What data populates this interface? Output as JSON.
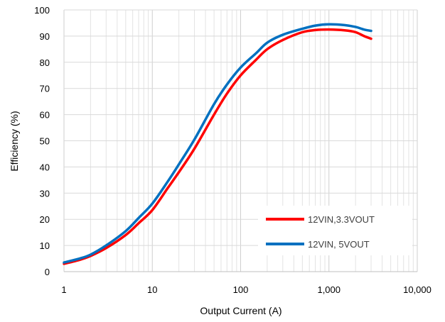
{
  "chart_data": {
    "type": "line",
    "title": "",
    "xlabel": "Output Current (A)",
    "ylabel": "Efficiency  (%)",
    "x_scale": "log",
    "xlim": [
      1,
      10000
    ],
    "ylim": [
      0,
      100
    ],
    "x_ticks": [
      1,
      10,
      100,
      1000,
      10000
    ],
    "x_tick_labels": [
      "1",
      "10",
      "100",
      "1,000",
      "10,000"
    ],
    "y_ticks": [
      0,
      10,
      20,
      30,
      40,
      50,
      60,
      70,
      80,
      90,
      100
    ],
    "y_tick_labels": [
      "0",
      "10",
      "20",
      "30",
      "40",
      "50",
      "60",
      "70",
      "80",
      "90",
      "100"
    ],
    "grid": true,
    "minor_grid_x": true,
    "legend_position": "bottom-right",
    "series": [
      {
        "name": "12VIN,3.3VOUT",
        "color": "#ff0000",
        "x": [
          1,
          1.5,
          2,
          3,
          5,
          7,
          10,
          15,
          20,
          30,
          50,
          70,
          100,
          150,
          200,
          300,
          500,
          700,
          1000,
          1500,
          2000,
          2500,
          3000
        ],
        "y": [
          3,
          4.5,
          6,
          9,
          14,
          18.5,
          23.5,
          32,
          38,
          47,
          60,
          68,
          75,
          81,
          85,
          88.5,
          91.5,
          92.3,
          92.5,
          92.2,
          91.5,
          90,
          89
        ]
      },
      {
        "name": "12VIN, 5VOUT",
        "color": "#0070c0",
        "x": [
          1,
          1.5,
          2,
          3,
          5,
          7,
          10,
          15,
          20,
          30,
          50,
          70,
          100,
          150,
          200,
          300,
          500,
          700,
          1000,
          1500,
          2000,
          2500,
          3000
        ],
        "y": [
          3.5,
          5,
          6.5,
          10,
          15.5,
          20.5,
          26,
          34.5,
          41,
          50.5,
          64,
          71.5,
          78,
          83.5,
          87.5,
          90.5,
          92.8,
          94,
          94.5,
          94.2,
          93.5,
          92.5,
          92
        ]
      }
    ]
  }
}
